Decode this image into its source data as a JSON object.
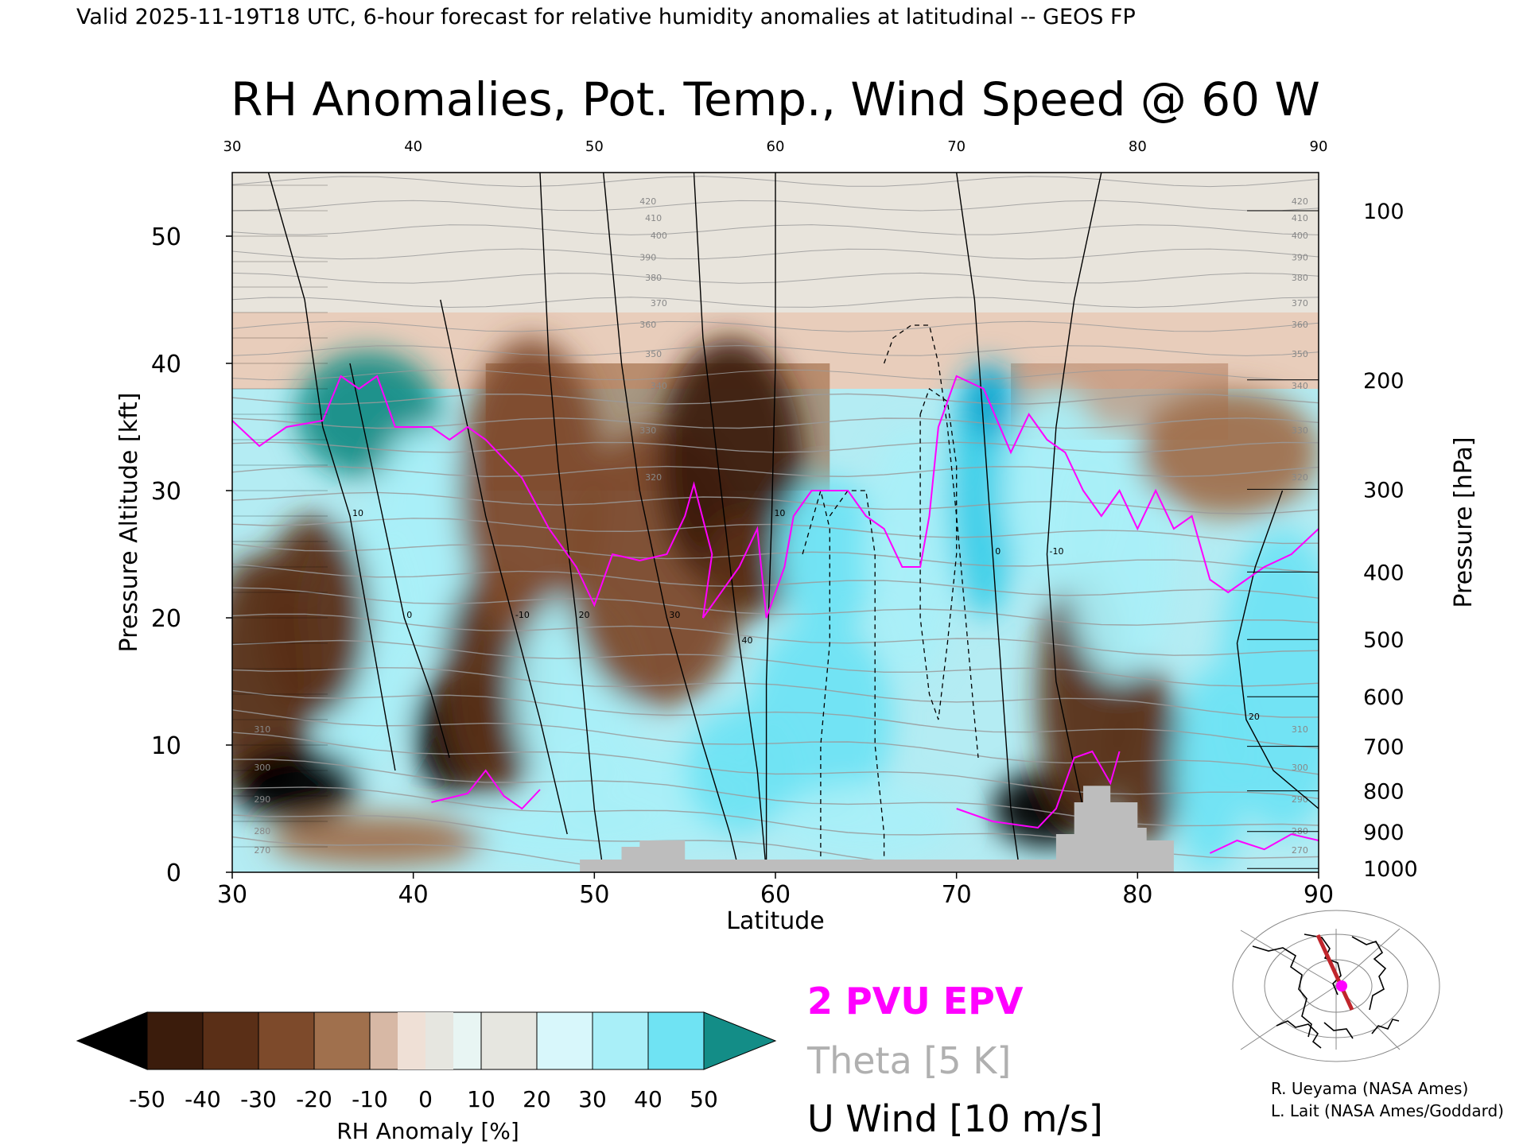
{
  "header": {
    "validity": "Valid 2025-11-19T18 UTC, 6-hour forecast for relative humidity anomalies at latitudinal -- GEOS FP"
  },
  "chart_data": {
    "type": "heatmap",
    "title": "RH Anomalies, Pot. Temp., Wind Speed @ 60 W",
    "xlabel": "Latitude",
    "ylabel_left": "Pressure Altitude [kft]",
    "ylabel_right": "Pressure [hPa]",
    "xlim": [
      30,
      90
    ],
    "ylim_kft": [
      0,
      55
    ],
    "x_ticks": [
      "30",
      "40",
      "50",
      "60",
      "70",
      "80",
      "90"
    ],
    "y_ticks_kft": [
      "0",
      "10",
      "20",
      "30",
      "40",
      "50"
    ],
    "pressure_ticks": [
      {
        "label": "100",
        "kft": 52.0
      },
      {
        "label": "200",
        "kft": 38.7
      },
      {
        "label": "300",
        "kft": 30.1
      },
      {
        "label": "400",
        "kft": 23.6
      },
      {
        "label": "500",
        "kft": 18.3
      },
      {
        "label": "600",
        "kft": 13.8
      },
      {
        "label": "700",
        "kft": 9.9
      },
      {
        "label": "800",
        "kft": 6.4
      },
      {
        "label": "900",
        "kft": 3.2
      },
      {
        "label": "1000",
        "kft": 0.3
      }
    ],
    "colorbar": {
      "label": "RH Anomaly [%]",
      "tick_labels": [
        "-50",
        "-40",
        "-30",
        "-20",
        "-10",
        "0",
        "10",
        "20",
        "30",
        "40",
        "50"
      ],
      "colors": [
        "#000000",
        "#3b1c0c",
        "#5a2f17",
        "#7d4a2b",
        "#a0704d",
        "#c49a7e",
        "#e9d4c8",
        "#e6e6e0",
        "#d8f7fb",
        "#a9eff8",
        "#6fe3f3",
        "#3bcfe8",
        "#12a8cf",
        "#0b7fa5",
        "#138d87"
      ]
    },
    "legend": [
      {
        "label": "2 PVU EPV",
        "color": "#ff00ff"
      },
      {
        "label": "Theta [5 K]",
        "color": "#b0b0b0"
      },
      {
        "label": "U Wind [10 m/s]",
        "color": "#000000"
      }
    ],
    "theta_labels": [
      "420",
      "410",
      "400",
      "390",
      "380",
      "370",
      "360",
      "350",
      "340",
      "330",
      "320",
      "310",
      "300",
      "290",
      "280",
      "270"
    ],
    "wind_labels": [
      "10",
      "0",
      "-10",
      "20",
      "30",
      "40"
    ],
    "anomaly_blobs": [
      {
        "lat": 37.5,
        "kft": 36,
        "rx": 4.0,
        "ry": 5.0,
        "v": 52
      },
      {
        "lat": 40.5,
        "kft": 26,
        "rx": 3.0,
        "ry": 9.0,
        "v": 28
      },
      {
        "lat": 37.0,
        "kft": 18,
        "rx": 3.0,
        "ry": 10.0,
        "v": 25
      },
      {
        "lat": 31.5,
        "kft": 15,
        "rx": 3.0,
        "ry": 10.0,
        "v": -35
      },
      {
        "lat": 34.5,
        "kft": 20,
        "rx": 3.0,
        "ry": 8.0,
        "v": -35
      },
      {
        "lat": 33.5,
        "kft": 7,
        "rx": 3.5,
        "ry": 3.0,
        "v": -55
      },
      {
        "lat": 42.5,
        "kft": 11,
        "rx": 2.5,
        "ry": 5.0,
        "v": -60
      },
      {
        "lat": 44.5,
        "kft": 15,
        "rx": 3.0,
        "ry": 9.0,
        "v": -35
      },
      {
        "lat": 46.5,
        "kft": 30,
        "rx": 4.0,
        "ry": 12.0,
        "v": -22
      },
      {
        "lat": 49.0,
        "kft": 14,
        "rx": 3.5,
        "ry": 8.0,
        "v": 28
      },
      {
        "lat": 53.5,
        "kft": 24,
        "rx": 5.0,
        "ry": 11.0,
        "v": -25
      },
      {
        "lat": 57.5,
        "kft": 32,
        "rx": 4.0,
        "ry": 10.0,
        "v": -42
      },
      {
        "lat": 58.5,
        "kft": 24,
        "rx": 2.5,
        "ry": 4.0,
        "v": -40
      },
      {
        "lat": 53.0,
        "kft": 6,
        "rx": 6.0,
        "ry": 4.0,
        "v": 28
      },
      {
        "lat": 58.0,
        "kft": 8,
        "rx": 3.0,
        "ry": 5.0,
        "v": 30
      },
      {
        "lat": 63.0,
        "kft": 25,
        "rx": 3.0,
        "ry": 6.0,
        "v": 38
      },
      {
        "lat": 62.5,
        "kft": 12,
        "rx": 4.0,
        "ry": 8.0,
        "v": 30
      },
      {
        "lat": 67.5,
        "kft": 25,
        "rx": 2.5,
        "ry": 10.0,
        "v": 28
      },
      {
        "lat": 71.5,
        "kft": 30,
        "rx": 2.0,
        "ry": 10.0,
        "v": 45
      },
      {
        "lat": 71.8,
        "kft": 37,
        "rx": 1.5,
        "ry": 3.0,
        "v": 50
      },
      {
        "lat": 75.0,
        "kft": 5,
        "rx": 3.0,
        "ry": 3.0,
        "v": -60
      },
      {
        "lat": 77.0,
        "kft": 14,
        "rx": 2.5,
        "ry": 10.0,
        "v": -40
      },
      {
        "lat": 80.5,
        "kft": 9,
        "rx": 2.0,
        "ry": 7.0,
        "v": -40
      },
      {
        "lat": 75.5,
        "kft": 30,
        "rx": 3.0,
        "ry": 8.0,
        "v": 25
      },
      {
        "lat": 79.0,
        "kft": 25,
        "rx": 3.0,
        "ry": 10.0,
        "v": 20
      },
      {
        "lat": 88.0,
        "kft": 15,
        "rx": 3.5,
        "ry": 12.0,
        "v": 35
      },
      {
        "lat": 84.0,
        "kft": 8,
        "rx": 2.0,
        "ry": 8.0,
        "v": 30
      },
      {
        "lat": 85.0,
        "kft": 33,
        "rx": 5.0,
        "ry": 5.0,
        "v": -12
      },
      {
        "lat": 48.0,
        "kft": 3,
        "rx": 6.0,
        "ry": 2.5,
        "v": 25
      },
      {
        "lat": 38.0,
        "kft": 2.5,
        "rx": 6.0,
        "ry": 2.0,
        "v": -20
      },
      {
        "lat": 65.0,
        "kft": 4,
        "rx": 5.0,
        "ry": 3.0,
        "v": 20
      }
    ],
    "terrain": [
      [
        49.2,
        1
      ],
      [
        51.5,
        1
      ],
      [
        51.5,
        2
      ],
      [
        52.5,
        2
      ],
      [
        52.5,
        2.5
      ],
      [
        55.0,
        2.5
      ],
      [
        55.0,
        1
      ],
      [
        65.0,
        1
      ],
      [
        75.5,
        1
      ],
      [
        75.5,
        3
      ],
      [
        76.5,
        3
      ],
      [
        76.5,
        5.5
      ],
      [
        77.0,
        5.5
      ],
      [
        77.0,
        6.8
      ],
      [
        78.5,
        6.8
      ],
      [
        78.5,
        5.5
      ],
      [
        80.0,
        5.5
      ],
      [
        80.0,
        3.5
      ],
      [
        80.5,
        3.5
      ],
      [
        80.5,
        2.5
      ],
      [
        82.0,
        2.5
      ],
      [
        82.0,
        0
      ]
    ],
    "epv_2pvu": [
      [
        30,
        35.5
      ],
      [
        31.5,
        33.5
      ],
      [
        33,
        35
      ],
      [
        35,
        35.5
      ],
      [
        36,
        39
      ],
      [
        37,
        38
      ],
      [
        38,
        39
      ],
      [
        39,
        35
      ],
      [
        41,
        35
      ],
      [
        42,
        34
      ],
      [
        43,
        35
      ],
      [
        44,
        34
      ],
      [
        46,
        31
      ],
      [
        47.5,
        27
      ],
      [
        49,
        24
      ],
      [
        50,
        21
      ],
      [
        51,
        25
      ],
      [
        52.5,
        24.5
      ],
      [
        54,
        25
      ],
      [
        55,
        28
      ],
      [
        55.5,
        30.5
      ],
      [
        56.5,
        25
      ],
      [
        56,
        20
      ],
      [
        58,
        24
      ],
      [
        59,
        27
      ],
      [
        59.5,
        20
      ],
      [
        60.5,
        24
      ],
      [
        61,
        28
      ],
      [
        62,
        30
      ],
      [
        64,
        30
      ],
      [
        65,
        28
      ],
      [
        66,
        27
      ],
      [
        67,
        24
      ],
      [
        68,
        24
      ],
      [
        68.5,
        28
      ],
      [
        69,
        35
      ],
      [
        70,
        39
      ],
      [
        71.5,
        38
      ],
      [
        73,
        33
      ],
      [
        74,
        36
      ],
      [
        75,
        34
      ],
      [
        76,
        33
      ],
      [
        77,
        30
      ],
      [
        78,
        28
      ],
      [
        79,
        30
      ],
      [
        80,
        27
      ],
      [
        81,
        30
      ],
      [
        82,
        27
      ],
      [
        83,
        28
      ],
      [
        84,
        23
      ],
      [
        85,
        22
      ],
      [
        87,
        24
      ],
      [
        88.5,
        25
      ],
      [
        90,
        27
      ]
    ],
    "wind_lines": [
      [
        [
          32,
          55
        ],
        [
          34,
          45
        ],
        [
          35,
          35
        ],
        [
          36.5,
          28
        ],
        [
          37.5,
          20
        ],
        [
          38.5,
          12
        ],
        [
          39,
          8
        ]
      ],
      [
        [
          36.5,
          40
        ],
        [
          38,
          30
        ],
        [
          39.5,
          20
        ],
        [
          41,
          14
        ],
        [
          42,
          9
        ]
      ],
      [
        [
          41.5,
          45
        ],
        [
          43,
          35
        ],
        [
          44,
          28
        ],
        [
          45.5,
          20
        ],
        [
          47,
          12
        ],
        [
          48.5,
          3
        ]
      ],
      [
        [
          47,
          55
        ],
        [
          47.5,
          40
        ],
        [
          48,
          32
        ],
        [
          49,
          20
        ],
        [
          50,
          5
        ],
        [
          50.5,
          0
        ]
      ],
      [
        [
          50.5,
          55
        ],
        [
          51.5,
          40
        ],
        [
          52.5,
          30
        ],
        [
          54,
          20
        ],
        [
          56,
          10
        ],
        [
          57.5,
          3
        ],
        [
          58,
          0
        ]
      ],
      [
        [
          55.5,
          55
        ],
        [
          56,
          42
        ],
        [
          57,
          30
        ],
        [
          58,
          18
        ],
        [
          59,
          8
        ],
        [
          59.5,
          0
        ]
      ],
      [
        [
          60,
          55
        ],
        [
          60,
          40
        ],
        [
          59.8,
          28
        ],
        [
          59.5,
          15
        ],
        [
          59.5,
          0
        ]
      ],
      [
        [
          70,
          55
        ],
        [
          71,
          45
        ],
        [
          71.5,
          35
        ],
        [
          72,
          25
        ],
        [
          72.5,
          15
        ],
        [
          73,
          5
        ],
        [
          73.5,
          0
        ]
      ],
      [
        [
          78,
          55
        ],
        [
          76.5,
          45
        ],
        [
          75.5,
          35
        ],
        [
          75,
          25
        ],
        [
          75.5,
          15
        ],
        [
          77,
          5
        ],
        [
          77.5,
          0
        ]
      ],
      [
        [
          88,
          30
        ],
        [
          86.5,
          24
        ],
        [
          85.5,
          18
        ],
        [
          86,
          12
        ],
        [
          87.5,
          8
        ],
        [
          90,
          5
        ]
      ]
    ],
    "wind_dashed": [
      [
        [
          66,
          40
        ],
        [
          66.5,
          42
        ],
        [
          67.5,
          43
        ],
        [
          68.5,
          43
        ],
        [
          69,
          40
        ],
        [
          69.5,
          35
        ],
        [
          70,
          28
        ],
        [
          70.5,
          20
        ],
        [
          71,
          12
        ],
        [
          71.2,
          9
        ]
      ],
      [
        [
          68,
          36
        ],
        [
          68.5,
          38
        ],
        [
          69.5,
          37
        ],
        [
          70,
          32
        ],
        [
          70,
          25
        ],
        [
          69.5,
          18
        ],
        [
          69,
          12
        ],
        [
          68.5,
          14
        ],
        [
          68,
          20
        ],
        [
          68,
          28
        ],
        [
          68,
          36
        ]
      ],
      [
        [
          63,
          28
        ],
        [
          64,
          30
        ],
        [
          65,
          30
        ],
        [
          65.5,
          25
        ],
        [
          65.5,
          18
        ],
        [
          65.5,
          10
        ],
        [
          66,
          3
        ],
        [
          66,
          0
        ]
      ],
      [
        [
          61.5,
          25
        ],
        [
          62.5,
          30
        ],
        [
          63,
          27
        ],
        [
          63,
          18
        ],
        [
          62.5,
          10
        ],
        [
          62.5,
          0
        ]
      ]
    ],
    "credits": [
      "R. Ueyama (NASA Ames)",
      "L. Lait (NASA Ames/Goddard)"
    ]
  }
}
